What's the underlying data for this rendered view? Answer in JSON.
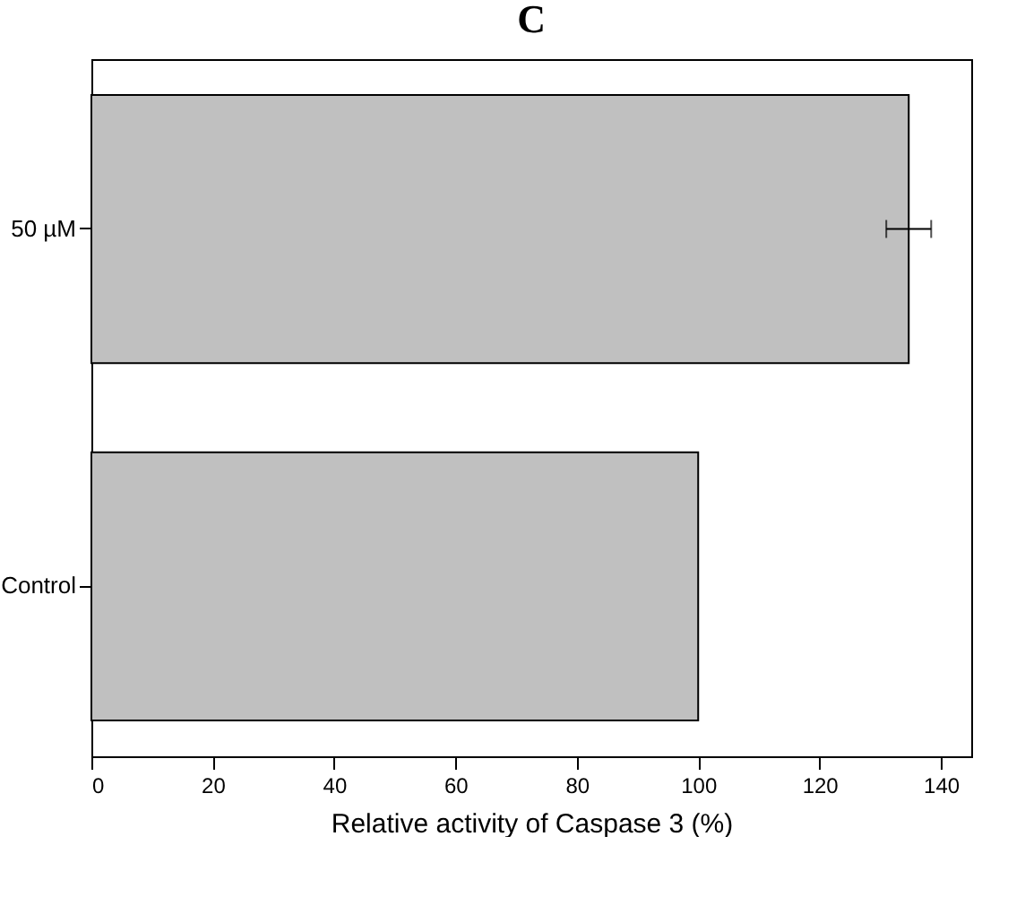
{
  "chart_data": {
    "type": "bar",
    "title": "C",
    "orientation": "horizontal",
    "xlabel": "Relative activity of Caspase 3 (%)",
    "categories": [
      "50 µM",
      "Control"
    ],
    "values": [
      134.7,
      100
    ],
    "errors": [
      3.7,
      null
    ],
    "color": "#c0c0c0",
    "xlim": [
      0,
      145
    ],
    "xticks": [
      0,
      20,
      40,
      60,
      80,
      100,
      120,
      140
    ],
    "grid": false
  }
}
